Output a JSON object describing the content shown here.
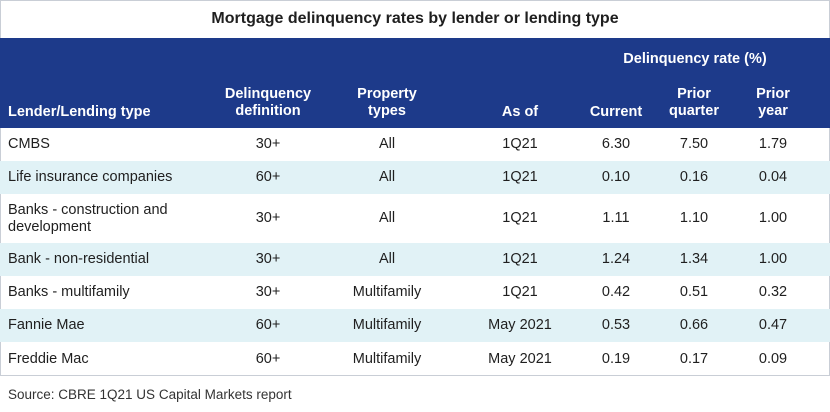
{
  "chart_data": {
    "type": "table",
    "title": "Mortgage delinquency rates by lender or lending type",
    "group_header": "Delinquency rate (%)",
    "columns": [
      "Lender/Lending type",
      "Delinquency definition",
      "Property types",
      "As of",
      "Current",
      "Prior quarter",
      "Prior year"
    ],
    "rows": [
      [
        "CMBS",
        "30+",
        "All",
        "1Q21",
        "6.30",
        "7.50",
        "1.79"
      ],
      [
        "Life insurance companies",
        "60+",
        "All",
        "1Q21",
        "0.10",
        "0.16",
        "0.04"
      ],
      [
        "Banks - construction and development",
        "30+",
        "All",
        "1Q21",
        "1.11",
        "1.10",
        "1.00"
      ],
      [
        "Bank - non-residential",
        "30+",
        "All",
        "1Q21",
        "1.24",
        "1.34",
        "1.00"
      ],
      [
        "Banks - multifamily",
        "30+",
        "Multifamily",
        "1Q21",
        "0.42",
        "0.51",
        "0.32"
      ],
      [
        "Fannie Mae",
        "60+",
        "Multifamily",
        "May 2021",
        "0.53",
        "0.66",
        "0.47"
      ],
      [
        "Freddie Mac",
        "60+",
        "Multifamily",
        "May 2021",
        "0.19",
        "0.17",
        "0.09"
      ]
    ],
    "source": "Source: CBRE 1Q21 US Capital Markets report",
    "colors": {
      "header_bg": "#1d3a8a",
      "alt_row_bg": "#e1f2f6",
      "header_text": "#ffffff"
    }
  }
}
